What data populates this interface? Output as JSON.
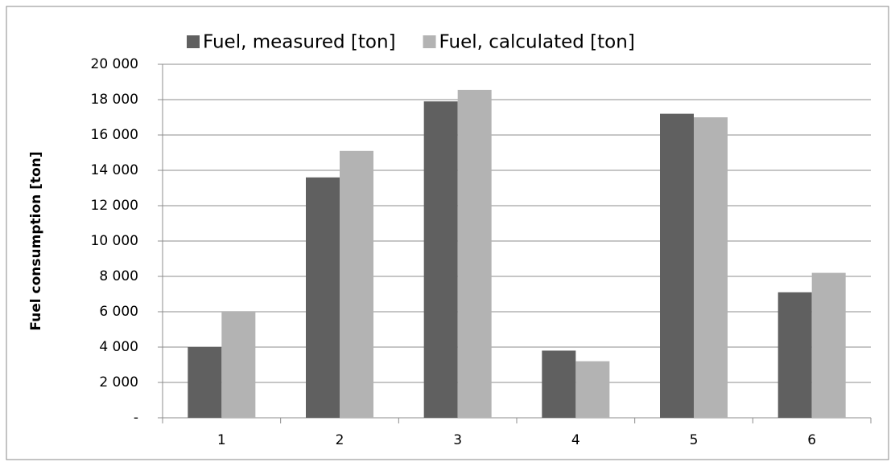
{
  "chart_data": {
    "type": "bar",
    "y_label": "Fuel consumption [ton]",
    "categories": [
      "1",
      "2",
      "3",
      "4",
      "5",
      "6"
    ],
    "series": [
      {
        "name": "Fuel, measured [ton]",
        "color": "#606060",
        "values": [
          4000,
          13600,
          17900,
          3800,
          17200,
          7100
        ]
      },
      {
        "name": "Fuel, calculated [ton]",
        "color": "#b3b3b3",
        "values": [
          6000,
          15100,
          18550,
          3200,
          17000,
          8200
        ]
      }
    ],
    "ylim": [
      0,
      20000
    ],
    "yticks": [
      {
        "value": 0,
        "label": "-"
      },
      {
        "value": 2000,
        "label": "2 000"
      },
      {
        "value": 4000,
        "label": "4 000"
      },
      {
        "value": 6000,
        "label": "6 000"
      },
      {
        "value": 8000,
        "label": "8 000"
      },
      {
        "value": 10000,
        "label": "10 000"
      },
      {
        "value": 12000,
        "label": "12 000"
      },
      {
        "value": 14000,
        "label": "14 000"
      },
      {
        "value": 16000,
        "label": "16 000"
      },
      {
        "value": 18000,
        "label": "18 000"
      },
      {
        "value": 20000,
        "label": "20 000"
      }
    ],
    "grid": true
  }
}
